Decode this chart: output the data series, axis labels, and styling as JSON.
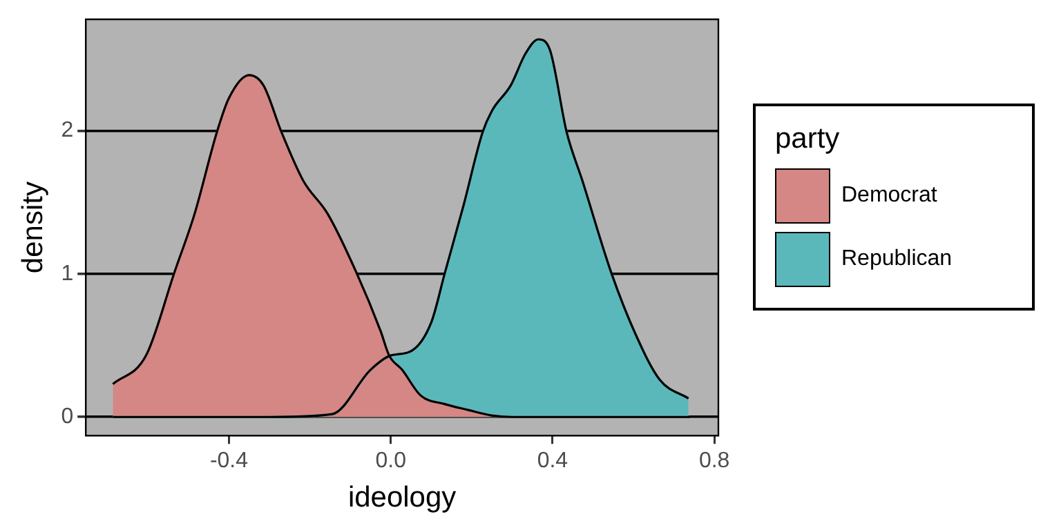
{
  "chart_data": {
    "type": "area",
    "xlabel": "ideology",
    "ylabel": "density",
    "legend_title": "party",
    "legend": "right",
    "grid": "y",
    "xlim": [
      -0.754,
      0.81
    ],
    "ylim": [
      -0.13,
      2.78
    ],
    "xticks": [
      -0.4,
      {
        "value": 0,
        "label": "0.0"
      },
      0.4,
      0.8
    ],
    "yticks": [
      0,
      1,
      2
    ],
    "series": [
      {
        "name": "Democrat",
        "color": "#d48784",
        "x": [
          -0.687,
          -0.605,
          -0.535,
          -0.485,
          -0.43,
          -0.4,
          -0.35,
          -0.315,
          -0.27,
          -0.216,
          -0.156,
          -0.085,
          -0.025,
          -0.004,
          0.028,
          0.074,
          0.134,
          0.19,
          0.25,
          0.3,
          0.5,
          0.74
        ],
        "values": [
          0.23,
          0.43,
          1.01,
          1.42,
          1.99,
          2.23,
          2.39,
          2.32,
          1.99,
          1.65,
          1.42,
          1.01,
          0.6,
          0.43,
          0.33,
          0.15,
          0.09,
          0.05,
          0.01,
          0,
          0,
          0
        ]
      },
      {
        "name": "Republican",
        "color": "#5ab8bb",
        "x": [
          -0.687,
          -0.3,
          -0.145,
          -0.05,
          0.0,
          0.05,
          0.1,
          0.134,
          0.18,
          0.227,
          0.25,
          0.297,
          0.333,
          0.365,
          0.393,
          0.435,
          0.474,
          0.545,
          0.605,
          0.665,
          0.736
        ],
        "values": [
          0,
          0,
          0.02,
          0.33,
          0.43,
          0.46,
          0.66,
          1.01,
          1.48,
          1.99,
          2.14,
          2.32,
          2.54,
          2.64,
          2.57,
          1.99,
          1.65,
          1.01,
          0.58,
          0.26,
          0.13
        ]
      }
    ]
  }
}
